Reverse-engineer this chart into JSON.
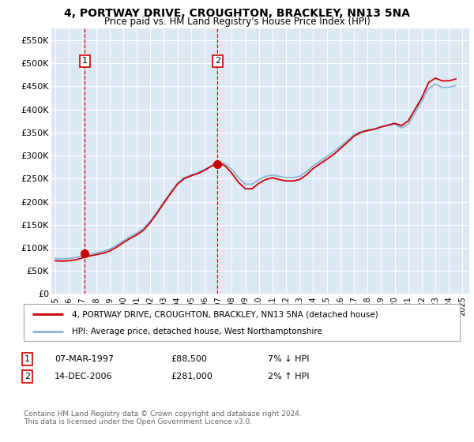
{
  "title": "4, PORTWAY DRIVE, CROUGHTON, BRACKLEY, NN13 5NA",
  "subtitle": "Price paid vs. HM Land Registry's House Price Index (HPI)",
  "legend_line1": "4, PORTWAY DRIVE, CROUGHTON, BRACKLEY, NN13 5NA (detached house)",
  "legend_line2": "HPI: Average price, detached house, West Northamptonshire",
  "footnote": "Contains HM Land Registry data © Crown copyright and database right 2024.\nThis data is licensed under the Open Government Licence v3.0.",
  "purchases": [
    {
      "label": "1",
      "date": "07-MAR-1997",
      "price": 88500,
      "year": 1997.18,
      "pct": "7% ↓ HPI"
    },
    {
      "label": "2",
      "date": "14-DEC-2006",
      "price": 281000,
      "year": 2006.95,
      "pct": "2% ↑ HPI"
    }
  ],
  "hpi_color": "#8ab4d8",
  "price_color": "#cc0000",
  "marker_color": "#cc0000",
  "vline_color": "#cc0000",
  "background_color": "#dce9f5",
  "ylim": [
    0,
    575000
  ],
  "xlim_start": 1994.7,
  "xlim_end": 2025.5,
  "yticks": [
    0,
    50000,
    100000,
    150000,
    200000,
    250000,
    300000,
    350000,
    400000,
    450000,
    500000,
    550000
  ],
  "ytick_labels": [
    "£0",
    "£50K",
    "£100K",
    "£150K",
    "£200K",
    "£250K",
    "£300K",
    "£350K",
    "£400K",
    "£450K",
    "£500K",
    "£550K"
  ],
  "xticks": [
    1995,
    1996,
    1997,
    1998,
    1999,
    2000,
    2001,
    2002,
    2003,
    2004,
    2005,
    2006,
    2007,
    2008,
    2009,
    2010,
    2011,
    2012,
    2013,
    2014,
    2015,
    2016,
    2017,
    2018,
    2019,
    2020,
    2021,
    2022,
    2023,
    2024,
    2025
  ],
  "hpi_data": {
    "years": [
      1995.0,
      1995.25,
      1995.5,
      1995.75,
      1996.0,
      1996.25,
      1996.5,
      1996.75,
      1997.0,
      1997.25,
      1997.5,
      1997.75,
      1998.0,
      1998.25,
      1998.5,
      1998.75,
      1999.0,
      1999.25,
      1999.5,
      1999.75,
      2000.0,
      2000.25,
      2000.5,
      2000.75,
      2001.0,
      2001.25,
      2001.5,
      2001.75,
      2002.0,
      2002.25,
      2002.5,
      2002.75,
      2003.0,
      2003.25,
      2003.5,
      2003.75,
      2004.0,
      2004.25,
      2004.5,
      2004.75,
      2005.0,
      2005.25,
      2005.5,
      2005.75,
      2006.0,
      2006.25,
      2006.5,
      2006.75,
      2007.0,
      2007.25,
      2007.5,
      2007.75,
      2008.0,
      2008.25,
      2008.5,
      2008.75,
      2009.0,
      2009.25,
      2009.5,
      2009.75,
      2010.0,
      2010.25,
      2010.5,
      2010.75,
      2011.0,
      2011.25,
      2011.5,
      2011.75,
      2012.0,
      2012.25,
      2012.5,
      2012.75,
      2013.0,
      2013.25,
      2013.5,
      2013.75,
      2014.0,
      2014.25,
      2014.5,
      2014.75,
      2015.0,
      2015.25,
      2015.5,
      2015.75,
      2016.0,
      2016.25,
      2016.5,
      2016.75,
      2017.0,
      2017.25,
      2017.5,
      2017.75,
      2018.0,
      2018.25,
      2018.5,
      2018.75,
      2019.0,
      2019.25,
      2019.5,
      2019.75,
      2020.0,
      2020.25,
      2020.5,
      2020.75,
      2021.0,
      2021.25,
      2021.5,
      2021.75,
      2022.0,
      2022.25,
      2022.5,
      2022.75,
      2023.0,
      2023.25,
      2023.5,
      2023.75,
      2024.0,
      2024.25,
      2024.5
    ],
    "values": [
      77000,
      76500,
      76000,
      76500,
      77000,
      78000,
      79000,
      80500,
      82000,
      83500,
      85000,
      87000,
      89000,
      90500,
      92000,
      94500,
      97000,
      101000,
      105000,
      110000,
      115000,
      119500,
      124000,
      128000,
      132000,
      137000,
      142000,
      150000,
      158000,
      168000,
      178000,
      189000,
      200000,
      210000,
      220000,
      230000,
      240000,
      246000,
      252000,
      255000,
      258000,
      260500,
      263000,
      266500,
      270000,
      274000,
      278000,
      281500,
      285000,
      283500,
      282000,
      276000,
      270000,
      261000,
      252000,
      245000,
      238000,
      238000,
      238000,
      243000,
      248000,
      251500,
      255000,
      256500,
      258000,
      256500,
      255000,
      253500,
      252000,
      252000,
      252000,
      253500,
      255000,
      260000,
      265000,
      271500,
      278000,
      283000,
      288000,
      293000,
      298000,
      303000,
      308000,
      314000,
      320000,
      326000,
      332000,
      338500,
      345000,
      348500,
      352000,
      354000,
      356000,
      357000,
      358000,
      360000,
      362000,
      363500,
      365000,
      366500,
      368000,
      364000,
      360000,
      364000,
      368000,
      380000,
      392000,
      405000,
      418000,
      431500,
      445000,
      450000,
      455000,
      451500,
      448000,
      448000,
      448000,
      450000,
      452000
    ]
  },
  "price_data": {
    "years": [
      1995.0,
      1995.25,
      1995.5,
      1995.75,
      1996.0,
      1996.25,
      1996.5,
      1996.75,
      1997.0,
      1997.25,
      1997.5,
      1997.75,
      1998.0,
      1998.25,
      1998.5,
      1998.75,
      1999.0,
      1999.25,
      1999.5,
      1999.75,
      2000.0,
      2000.25,
      2000.5,
      2000.75,
      2001.0,
      2001.25,
      2001.5,
      2001.75,
      2002.0,
      2002.25,
      2002.5,
      2002.75,
      2003.0,
      2003.25,
      2003.5,
      2003.75,
      2004.0,
      2004.25,
      2004.5,
      2004.75,
      2005.0,
      2005.25,
      2005.5,
      2005.75,
      2006.0,
      2006.25,
      2006.5,
      2006.75,
      2007.0,
      2007.25,
      2007.5,
      2007.75,
      2008.0,
      2008.25,
      2008.5,
      2008.75,
      2009.0,
      2009.25,
      2009.5,
      2009.75,
      2010.0,
      2010.25,
      2010.5,
      2010.75,
      2011.0,
      2011.25,
      2011.5,
      2011.75,
      2012.0,
      2012.25,
      2012.5,
      2012.75,
      2013.0,
      2013.25,
      2013.5,
      2013.75,
      2014.0,
      2014.25,
      2014.5,
      2014.75,
      2015.0,
      2015.25,
      2015.5,
      2015.75,
      2016.0,
      2016.25,
      2016.5,
      2016.75,
      2017.0,
      2017.25,
      2017.5,
      2017.75,
      2018.0,
      2018.25,
      2018.5,
      2018.75,
      2019.0,
      2019.25,
      2019.5,
      2019.75,
      2020.0,
      2020.25,
      2020.5,
      2020.75,
      2021.0,
      2021.25,
      2021.5,
      2021.75,
      2022.0,
      2022.25,
      2022.5,
      2022.75,
      2023.0,
      2023.25,
      2023.5,
      2023.75,
      2024.0,
      2024.25,
      2024.5
    ],
    "values": [
      72000,
      71500,
      71000,
      71500,
      72000,
      73000,
      74000,
      76000,
      78000,
      80000,
      82000,
      83500,
      85000,
      86500,
      88000,
      90500,
      93000,
      97000,
      101000,
      106000,
      111000,
      115500,
      120000,
      124000,
      128000,
      133000,
      138000,
      146500,
      155000,
      165000,
      175000,
      186000,
      197000,
      207500,
      218000,
      228000,
      238000,
      244000,
      250000,
      253000,
      256000,
      258500,
      261000,
      264500,
      268000,
      272500,
      277000,
      280500,
      284000,
      281000,
      278000,
      270000,
      262000,
      252000,
      242000,
      235000,
      228000,
      228000,
      228000,
      234000,
      240000,
      244000,
      248000,
      250000,
      252000,
      250000,
      248000,
      246500,
      245000,
      245000,
      245000,
      246500,
      248000,
      253000,
      258000,
      265000,
      272000,
      277000,
      282000,
      287000,
      292000,
      297000,
      302000,
      308500,
      315000,
      321500,
      328000,
      335000,
      342000,
      346000,
      350000,
      352000,
      354000,
      355500,
      357000,
      359500,
      362000,
      364000,
      366000,
      368000,
      370000,
      367500,
      365000,
      370000,
      375000,
      387500,
      400000,
      412500,
      425000,
      441500,
      458000,
      463000,
      468000,
      465000,
      462000,
      462000,
      462000,
      464000,
      466000
    ]
  }
}
